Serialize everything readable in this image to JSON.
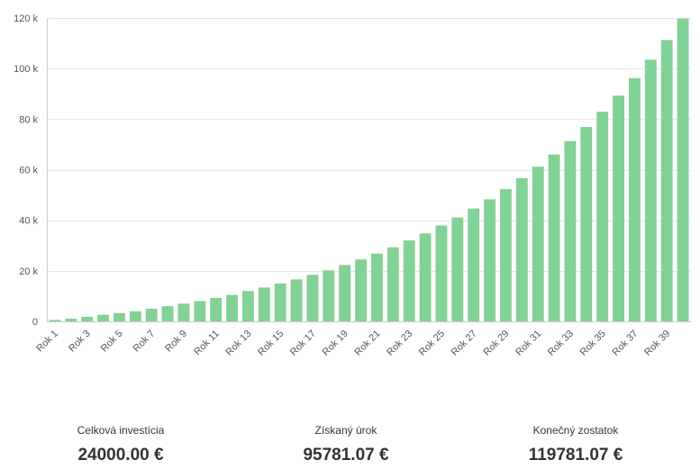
{
  "chart_data": {
    "type": "bar",
    "color": "#82d196",
    "grid": true,
    "legend": "none",
    "ylim": [
      0,
      120000
    ],
    "y_ticks": [
      {
        "value": 0,
        "label": "0"
      },
      {
        "value": 20000,
        "label": "20 k"
      },
      {
        "value": 40000,
        "label": "40 k"
      },
      {
        "value": 60000,
        "label": "60 k"
      },
      {
        "value": 80000,
        "label": "80 k"
      },
      {
        "value": 100000,
        "label": "100 k"
      },
      {
        "value": 120000,
        "label": "120 k"
      }
    ],
    "categories": [
      "Rok 1",
      "Rok 2",
      "Rok 3",
      "Rok 4",
      "Rok 5",
      "Rok 6",
      "Rok 7",
      "Rok 8",
      "Rok 9",
      "Rok 10",
      "Rok 11",
      "Rok 12",
      "Rok 13",
      "Rok 14",
      "Rok 15",
      "Rok 16",
      "Rok 17",
      "Rok 18",
      "Rok 19",
      "Rok 20",
      "Rok 21",
      "Rok 22",
      "Rok 23",
      "Rok 24",
      "Rok 25",
      "Rok 26",
      "Rok 27",
      "Rok 28",
      "Rok 29",
      "Rok 30",
      "Rok 31",
      "Rok 32",
      "Rok 33",
      "Rok 34",
      "Rok 35",
      "Rok 36",
      "Rok 37",
      "Rok 38",
      "Rok 39",
      "Rok 40"
    ],
    "visible_x_labels": [
      "Rok 1",
      "Rok 3",
      "Rok 5",
      "Rok 7",
      "Rok 9",
      "Rok 11",
      "Rok 13",
      "Rok 15",
      "Rok 17",
      "Rok 19",
      "Rok 21",
      "Rok 23",
      "Rok 25",
      "Rok 27",
      "Rok 29",
      "Rok 31",
      "Rok 33",
      "Rok 35",
      "Rok 37",
      "Rok 39"
    ],
    "values": [
      600,
      1100,
      1800,
      2600,
      3300,
      4000,
      5000,
      6000,
      7000,
      8000,
      9300,
      10500,
      12000,
      13400,
      15000,
      16600,
      18400,
      20200,
      22300,
      24500,
      26800,
      29300,
      32000,
      34800,
      37900,
      41100,
      44600,
      48300,
      52300,
      56600,
      61200,
      66000,
      71300,
      76900,
      82900,
      89300,
      96200,
      103500,
      111300,
      119781
    ]
  },
  "summary": {
    "invested_label": "Celková investícia",
    "invested_value": "24000.00 €",
    "interest_label": "Získaný úrok",
    "interest_value": "95781.07 €",
    "final_label": "Konečný zostatok",
    "final_value": "119781.07 €"
  }
}
